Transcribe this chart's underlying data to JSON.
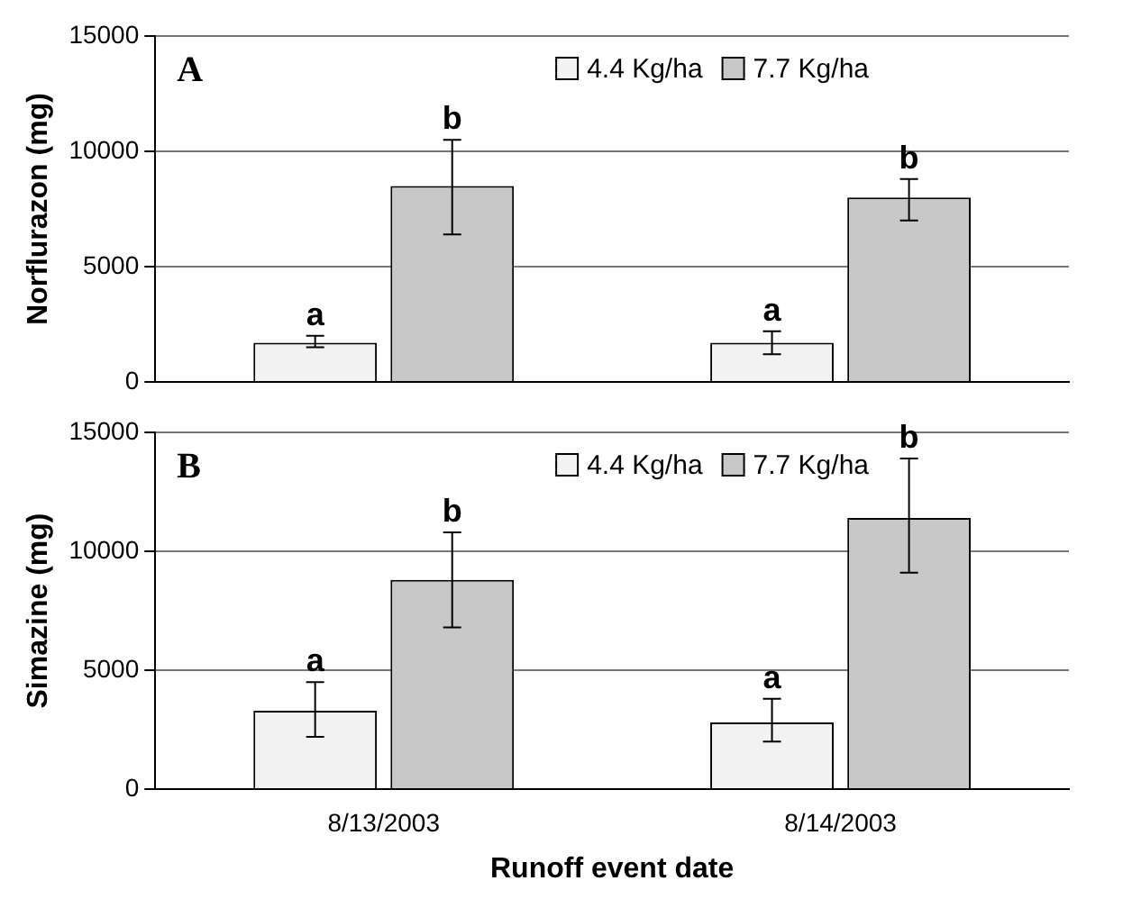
{
  "chart_data": [
    {
      "type": "bar",
      "ylabel": "Norflurazon (mg)",
      "categories": [
        null,
        null
      ],
      "ylim": [
        0,
        15000
      ],
      "yticks": [
        0,
        5000,
        10000,
        15000
      ],
      "grid": "y",
      "legend": "top right",
      "tick_labels": "y",
      "series": [
        {
          "name": "4.4 Kg/ha",
          "color": "#f2f2f2",
          "values": [
            1700,
            1700
          ],
          "errors": [
            [
              1500,
              2000
            ],
            [
              1200,
              2200
            ]
          ]
        },
        {
          "name": "7.7 Kg/ha",
          "color": "#c8c8c8",
          "values": [
            8500,
            8000
          ],
          "errors": [
            [
              6400,
              10500
            ],
            [
              7000,
              8800
            ]
          ]
        }
      ],
      "annotations": [
        "A",
        "a",
        "b",
        "a",
        "b"
      ]
    },
    {
      "type": "bar",
      "ylabel": "Simazine (mg)",
      "xlabel": "Runoff event date",
      "categories": [
        "8/13/2003",
        "8/14/2003"
      ],
      "ylim": [
        0,
        15000
      ],
      "yticks": [
        0,
        5000,
        10000,
        15000
      ],
      "grid": "y",
      "legend": "top right",
      "series": [
        {
          "name": "4.4 Kg/ha",
          "color": "#f2f2f2",
          "values": [
            3300,
            2800
          ],
          "errors": [
            [
              2200,
              4500
            ],
            [
              2000,
              3800
            ]
          ]
        },
        {
          "name": "7.7 Kg/ha",
          "color": "#c8c8c8",
          "values": [
            8800,
            11400
          ],
          "errors": [
            [
              6800,
              10800
            ],
            [
              9100,
              13900
            ]
          ]
        }
      ],
      "annotations": [
        "B",
        "a",
        "b",
        "a",
        "b"
      ]
    }
  ]
}
